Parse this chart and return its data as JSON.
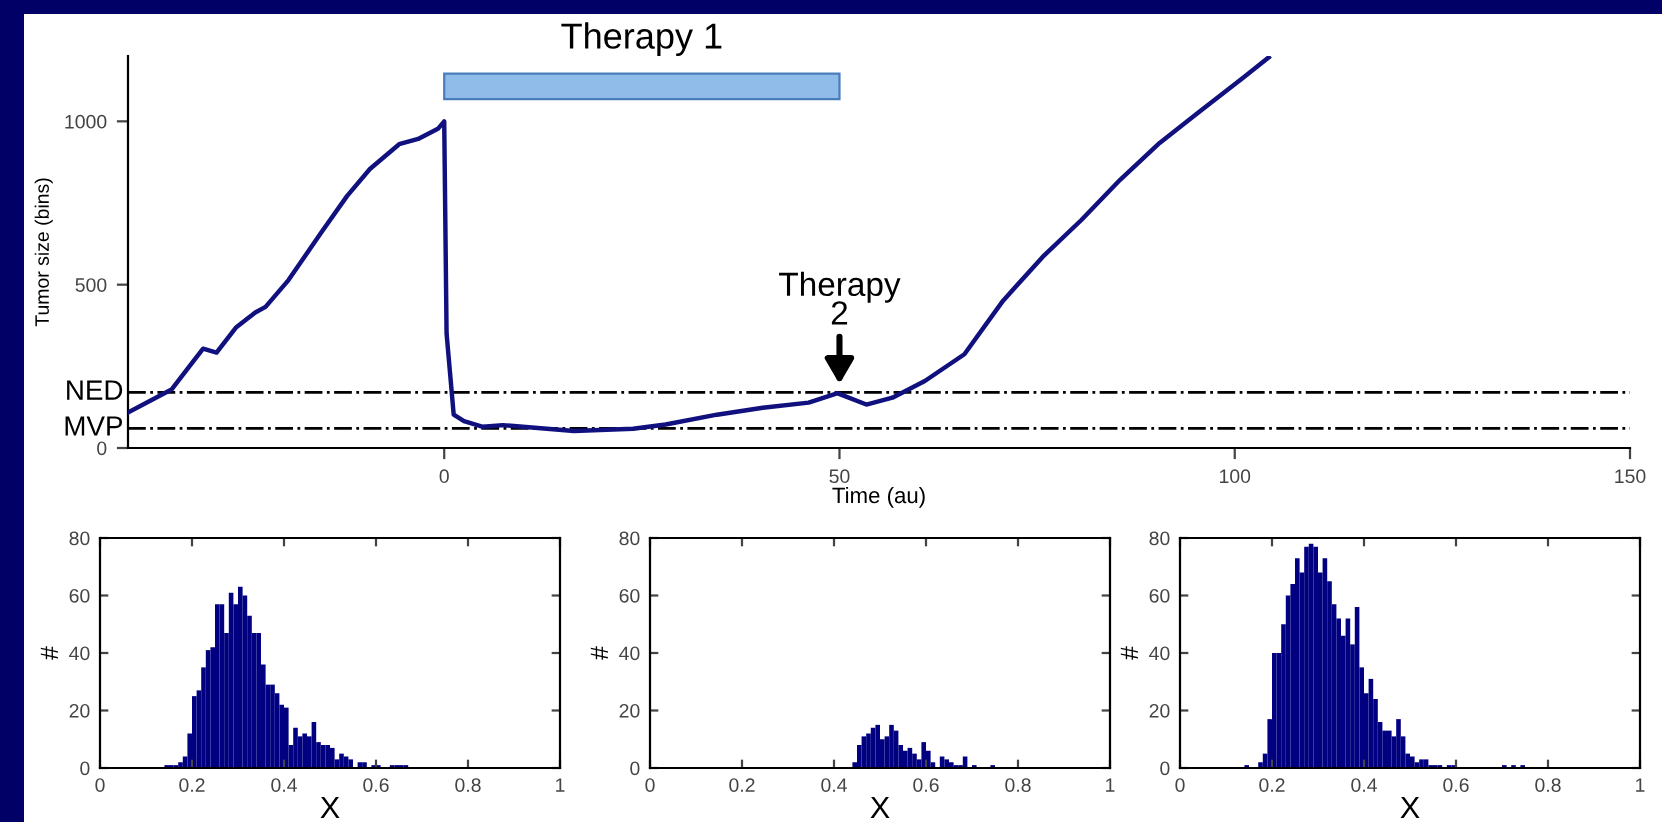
{
  "chart_data": [
    {
      "type": "line",
      "xlabel": "Time (au)",
      "ylabel": "Tumor size (bins)",
      "xlim": [
        -40,
        150
      ],
      "ylim": [
        0,
        1200
      ],
      "xticks": [
        0,
        50,
        100,
        150
      ],
      "yticks": [
        0,
        500,
        1000
      ],
      "grid": false,
      "line_style": "solid",
      "series": [
        {
          "color": "#10107f",
          "x": [
            -40,
            -34.5,
            -31.7,
            -30.5,
            -28.8,
            -26.3,
            -23.9,
            -22.6,
            -19.7,
            -15.6,
            -12.3,
            -9.4,
            -5.7,
            -3.3,
            -0.8,
            0,
            0.3,
            1.2,
            2.5,
            4.9,
            7.4,
            16.4,
            23.9,
            28,
            34.5,
            40.3,
            46.1,
            49.3,
            49.7,
            53.4,
            56.7,
            60.8,
            65.8,
            70.7,
            75.7,
            80.6,
            85.5,
            90.5,
            95.4,
            101.1,
            104.3
          ],
          "values": [
            109,
            179,
            267,
            304,
            292,
            370,
            415,
            432,
            514,
            658,
            771,
            854,
            930,
            946,
            977,
            1000,
            350,
            102,
            82,
            65,
            70,
            52,
            59,
            72,
            102,
            123,
            139,
            164,
            168,
            133,
            154,
            205,
            287,
            451,
            585,
            698,
            821,
            934,
            1027,
            1134,
            1196
          ]
        }
      ],
      "ref_lines": [
        {
          "axis": "y",
          "value": 170,
          "label": "NED",
          "color": "#000000",
          "line_style": "dashdot"
        },
        {
          "axis": "y",
          "value": 60,
          "label": "MVP",
          "color": "#000000",
          "line_style": "dashdot"
        }
      ],
      "bands": [
        {
          "axis": "x",
          "from": 0,
          "to": 50,
          "label": "Therapy 1",
          "color": "#8fbce8"
        }
      ],
      "annotations": [
        {
          "text": "Therapy\n2",
          "x": 50,
          "y": 170
        }
      ]
    },
    {
      "type": "histogram",
      "xlabel": "X",
      "ylabel": "#",
      "xlim": [
        0,
        1
      ],
      "ylim": [
        0,
        80
      ],
      "xticks": [
        0,
        0.2,
        0.4,
        0.6,
        0.8,
        1
      ],
      "yticks": [
        0,
        20,
        40,
        60,
        80
      ],
      "grid": false,
      "color": "#000080",
      "bins": [
        0.14,
        0.15,
        0.16,
        0.17,
        0.18,
        0.19,
        0.2,
        0.21,
        0.22,
        0.23,
        0.24,
        0.25,
        0.26,
        0.27,
        0.28,
        0.29,
        0.3,
        0.31,
        0.32,
        0.33,
        0.34,
        0.35,
        0.36,
        0.37,
        0.38,
        0.39,
        0.4,
        0.41,
        0.42,
        0.43,
        0.44,
        0.45,
        0.46,
        0.47,
        0.48,
        0.49,
        0.5,
        0.51,
        0.52,
        0.53,
        0.54,
        0.55,
        0.56,
        0.57,
        0.58,
        0.59,
        0.6,
        0.61,
        0.62,
        0.63,
        0.64,
        0.65,
        0.66,
        0.67
      ],
      "values": [
        1,
        1,
        1,
        2,
        4,
        12,
        25,
        27,
        35,
        41,
        42,
        57,
        57,
        47,
        61,
        57,
        63,
        60,
        53,
        47,
        47,
        36,
        29,
        29,
        26,
        22,
        21,
        8,
        14,
        11,
        12,
        11,
        16,
        9,
        8,
        8,
        7,
        3,
        5,
        4,
        3,
        null,
        2,
        2,
        null,
        1,
        1,
        null,
        null,
        1,
        1,
        1,
        1
      ]
    },
    {
      "type": "histogram",
      "xlabel": "X",
      "ylabel": "#",
      "xlim": [
        0,
        1
      ],
      "ylim": [
        0,
        80
      ],
      "xticks": [
        0,
        0.2,
        0.4,
        0.6,
        0.8,
        1
      ],
      "yticks": [
        0,
        20,
        40,
        60,
        80
      ],
      "grid": false,
      "color": "#000080",
      "bins": [
        0.44,
        0.45,
        0.46,
        0.47,
        0.48,
        0.49,
        0.5,
        0.51,
        0.52,
        0.53,
        0.54,
        0.55,
        0.56,
        0.57,
        0.58,
        0.59,
        0.6,
        0.61,
        0.62,
        0.63,
        0.64,
        0.65,
        0.66,
        0.67,
        0.68,
        0.69,
        0.7,
        0.71,
        0.72,
        0.73,
        0.74,
        0.75
      ],
      "values": [
        2,
        8,
        11,
        12,
        14,
        15,
        10,
        11,
        15,
        13,
        8,
        6,
        7,
        5,
        3,
        9,
        6,
        2,
        null,
        4,
        3,
        2,
        1,
        1,
        4,
        null,
        1,
        null,
        null,
        null,
        1
      ]
    },
    {
      "type": "histogram",
      "xlabel": "X",
      "ylabel": "#",
      "xlim": [
        0,
        1
      ],
      "ylim": [
        0,
        80
      ],
      "xticks": [
        0,
        0.2,
        0.4,
        0.6,
        0.8,
        1
      ],
      "yticks": [
        0,
        20,
        40,
        60,
        80
      ],
      "grid": false,
      "color": "#000080",
      "bins": [
        0.14,
        0.15,
        0.16,
        0.17,
        0.18,
        0.19,
        0.2,
        0.21,
        0.22,
        0.23,
        0.24,
        0.25,
        0.26,
        0.27,
        0.28,
        0.29,
        0.3,
        0.31,
        0.32,
        0.33,
        0.34,
        0.35,
        0.36,
        0.37,
        0.38,
        0.39,
        0.4,
        0.41,
        0.42,
        0.43,
        0.44,
        0.45,
        0.46,
        0.47,
        0.48,
        0.49,
        0.5,
        0.51,
        0.52,
        0.53,
        0.54,
        0.55,
        0.56,
        0.57,
        0.58,
        0.59,
        0.6,
        0.61,
        0.62,
        0.63,
        0.64,
        0.65,
        0.66,
        0.67,
        0.68,
        0.69,
        0.7,
        0.71,
        0.72,
        0.73,
        0.74,
        0.75
      ],
      "values": [
        1,
        null,
        null,
        2,
        5,
        17,
        40,
        40,
        50,
        60,
        64,
        73,
        68,
        77,
        78,
        77,
        68,
        73,
        65,
        57,
        52,
        46,
        52,
        43,
        56,
        35,
        26,
        31,
        24,
        16,
        13,
        13,
        11,
        17,
        11,
        5,
        4,
        2,
        3,
        3,
        1,
        1,
        1,
        null,
        1,
        1,
        null,
        null,
        null,
        null,
        null,
        null,
        null,
        null,
        null,
        null,
        1,
        null,
        1,
        null,
        1
      ]
    }
  ]
}
